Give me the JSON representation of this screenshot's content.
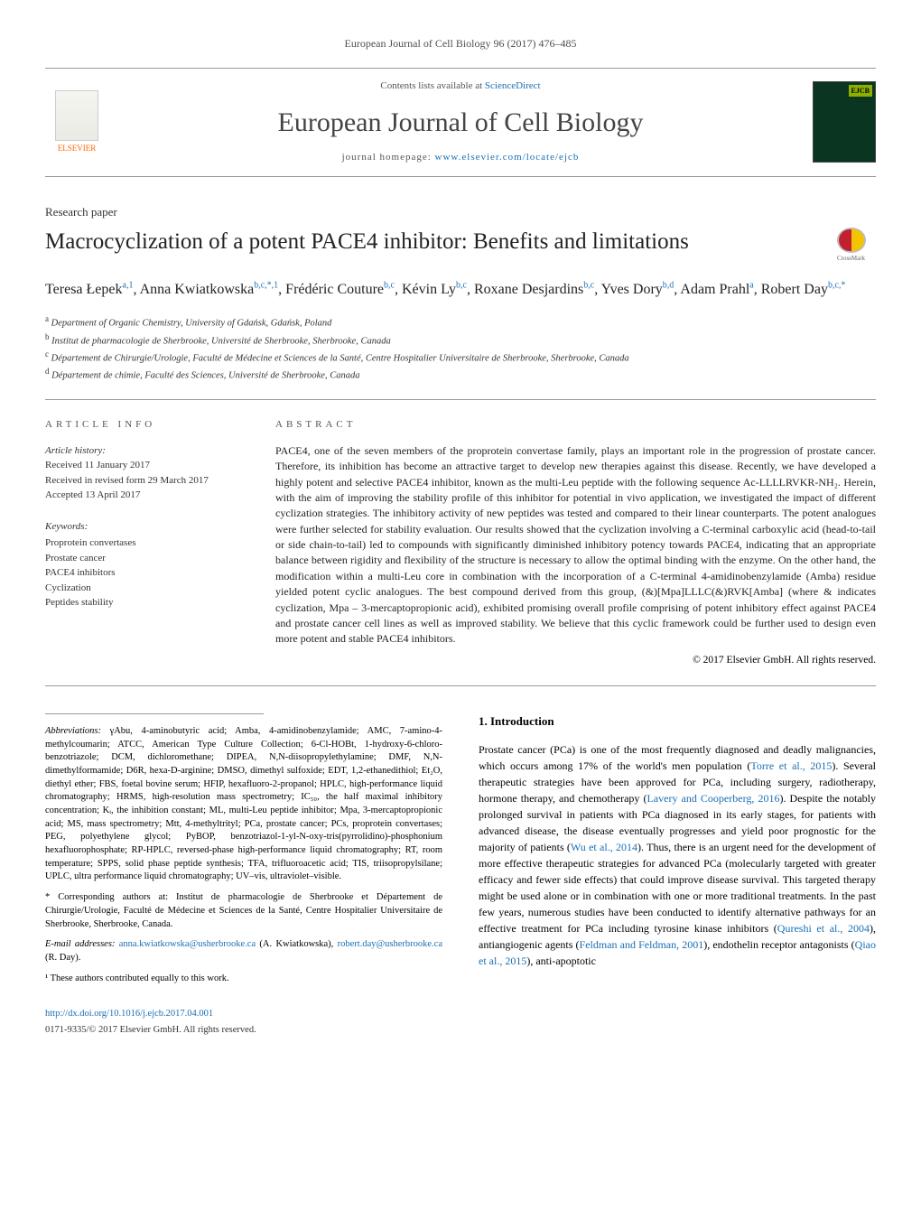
{
  "header": {
    "citation": "European Journal of Cell Biology 96 (2017) 476–485"
  },
  "banner": {
    "publisher": "ELSEVIER",
    "contents_prefix": "Contents lists available at ",
    "contents_link": "ScienceDirect",
    "journal": "European Journal of Cell Biology",
    "homepage_prefix": "journal homepage: ",
    "homepage_url": "www.elsevier.com/locate/ejcb",
    "cover_badge": "EJCB"
  },
  "article": {
    "type": "Research paper",
    "title": "Macrocyclization of a potent PACE4 inhibitor: Benefits and limitations",
    "crossmark": "CrossMark"
  },
  "authors_html": "Teresa Łepek<sup>a,1</sup>, Anna Kwiatkowska<sup>b,c,*,1</sup>, Frédéric Couture<sup>b,c</sup>, Kévin Ly<sup>b,c</sup>, Roxane Desjardins<sup>b,c</sup>, Yves Dory<sup>b,d</sup>, Adam Prahl<sup>a</sup>, Robert Day<sup>b,c,*</sup>",
  "affiliations": [
    {
      "sup": "a",
      "text": "Department of Organic Chemistry, University of Gdańsk, Gdańsk, Poland"
    },
    {
      "sup": "b",
      "text": "Institut de pharmacologie de Sherbrooke, Université de Sherbrooke, Sherbrooke, Canada"
    },
    {
      "sup": "c",
      "text": "Département de Chirurgie/Urologie, Faculté de Médecine et Sciences de la Santé, Centre Hospitalier Universitaire de Sherbrooke, Sherbrooke, Canada"
    },
    {
      "sup": "d",
      "text": "Département de chimie, Faculté des Sciences, Université de Sherbrooke, Canada"
    }
  ],
  "info": {
    "head": "article info",
    "history_label": "Article history:",
    "received": "Received 11 January 2017",
    "revised": "Received in revised form 29 March 2017",
    "accepted": "Accepted 13 April 2017",
    "keywords_label": "Keywords:",
    "keywords": [
      "Proprotein convertases",
      "Prostate cancer",
      "PACE4 inhibitors",
      "Cyclization",
      "Peptides stability"
    ]
  },
  "abstract": {
    "head": "abstract",
    "text": "PACE4, one of the seven members of the proprotein convertase family, plays an important role in the progression of prostate cancer. Therefore, its inhibition has become an attractive target to develop new therapies against this disease. Recently, we have developed a highly potent and selective PACE4 inhibitor, known as the multi-Leu peptide with the following sequence Ac-LLLLRVKR-NH₂. Herein, with the aim of improving the stability profile of this inhibitor for potential in vivo application, we investigated the impact of different cyclization strategies. The inhibitory activity of new peptides was tested and compared to their linear counterparts. The potent analogues were further selected for stability evaluation. Our results showed that the cyclization involving a C-terminal carboxylic acid (head-to-tail or side chain-to-tail) led to compounds with significantly diminished inhibitory potency towards PACE4, indicating that an appropriate balance between rigidity and flexibility of the structure is necessary to allow the optimal binding with the enzyme. On the other hand, the modification within a multi-Leu core in combination with the incorporation of a C-terminal 4-amidinobenzylamide (Amba) residue yielded potent cyclic analogues. The best compound derived from this group, (&)[Mpa]LLLC(&)RVK[Amba] (where & indicates cyclization, Mpa – 3-mercaptopropionic acid), exhibited promising overall profile comprising of potent inhibitory effect against PACE4 and prostate cancer cell lines as well as improved stability. We believe that this cyclic framework could be further used to design even more potent and stable PACE4 inhibitors.",
    "copyright": "© 2017 Elsevier GmbH. All rights reserved."
  },
  "abbreviations": {
    "label": "Abbreviations:",
    "text": "γAbu, 4-aminobutyric acid; Amba, 4-amidinobenzylamide; AMC, 7-amino-4-methylcoumarin; ATCC, American Type Culture Collection; 6-Cl-HOBt, 1-hydroxy-6-chloro-benzotriazole; DCM, dichloromethane; DIPEA, N,N-diisopropylethylamine; DMF, N,N-dimethylformamide; D6R, hexa-D-arginine; DMSO, dimethyl sulfoxide; EDT, 1,2-ethanedithiol; Et₂O, diethyl ether; FBS, foetal bovine serum; HFIP, hexafluoro-2-propanol; HPLC, high-performance liquid chromatography; HRMS, high-resolution mass spectrometry; IC₅₀, the half maximal inhibitory concentration; Kᵢ, the inhibition constant; ML, multi-Leu peptide inhibitor; Mpa, 3-mercaptopropionic acid; MS, mass spectrometry; Mtt, 4-methyltrityl; PCa, prostate cancer; PCs, proprotein convertases; PEG, polyethylene glycol; PyBOP, benzotriazol-1-yl-N-oxy-tris(pyrrolidino)-phosphonium hexafluorophosphate; RP-HPLC, reversed-phase high-performance liquid chromatography; RT, room temperature; SPPS, solid phase peptide synthesis; TFA, trifluoroacetic acid; TIS, triisopropylsilane; UPLC, ultra performance liquid chromatography; UV–vis, ultraviolet–visible."
  },
  "footnotes": {
    "corr": "* Corresponding authors at: Institut de pharmacologie de Sherbrooke et Département de Chirurgie/Urologie, Faculté de Médecine et Sciences de la Santé, Centre Hospitalier Universitaire de Sherbrooke, Sherbrooke, Canada.",
    "email_label": "E-mail addresses: ",
    "email1": "anna.kwiatkowska@usherbrooke.ca",
    "email1_who": " (A. Kwiatkowska), ",
    "email2": "robert.day@usherbrooke.ca",
    "email2_who": " (R. Day).",
    "equal": "¹ These authors contributed equally to this work."
  },
  "intro": {
    "head": "1. Introduction",
    "p1_a": "Prostate cancer (PCa) is one of the most frequently diagnosed and deadly malignancies, which occurs among 17% of the world's men population (",
    "ref1": "Torre et al., 2015",
    "p1_b": "). Several therapeutic strategies have been approved for PCa, including surgery, radiotherapy, hormone therapy, and chemotherapy (",
    "ref2": "Lavery and Cooperberg, 2016",
    "p1_c": "). Despite the notably prolonged survival in patients with PCa diagnosed in its early stages, for patients with advanced disease, the disease eventually progresses and yield poor prognostic for the majority of patients (",
    "ref3": "Wu et al., 2014",
    "p1_d": "). Thus, there is an urgent need for the development of more effective therapeutic strategies for advanced PCa (molecularly targeted with greater efficacy and fewer side effects) that could improve disease survival. This targeted therapy might be used alone or in combination with one or more traditional treatments. In the past few years, numerous studies have been conducted to identify alternative pathways for an effective treatment for PCa including tyrosine kinase inhibitors (",
    "ref4": "Qureshi et al., 2004",
    "p1_e": "), antiangiogenic agents (",
    "ref5": "Feldman and Feldman, 2001",
    "p1_f": "), endothelin receptor antagonists (",
    "ref6": "Qiao et al., 2015",
    "p1_g": "), anti-apoptotic"
  },
  "doi": {
    "url": "http://dx.doi.org/10.1016/j.ejcb.2017.04.001",
    "issn": "0171-9335/© 2017 Elsevier GmbH. All rights reserved."
  },
  "colors": {
    "link": "#1a6fb5",
    "orange": "#ff6600"
  }
}
